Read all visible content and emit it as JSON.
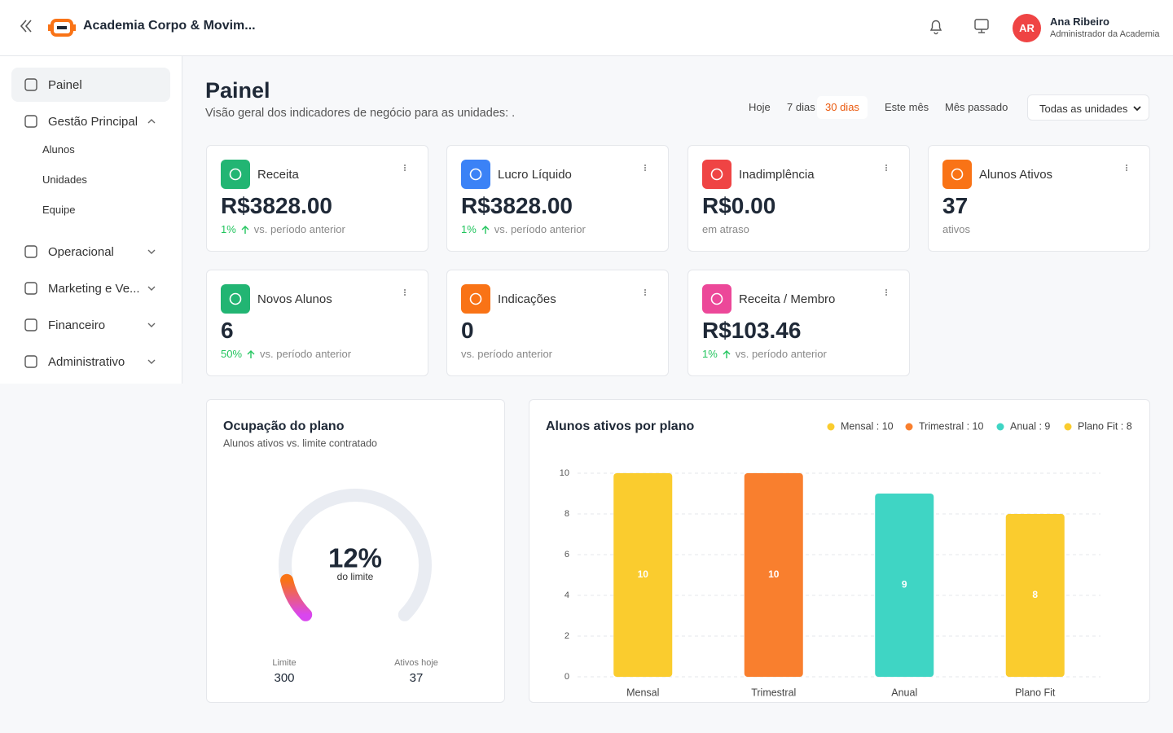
{
  "header": {
    "brand": "Academia Corpo & Movim...",
    "avatar": "AR",
    "user_name": "Ana Ribeiro",
    "user_role": "Administrador da Academia"
  },
  "sidebar": {
    "items": [
      {
        "label": "Painel",
        "active": true
      },
      {
        "label": "Gestão Principal",
        "expanded": true,
        "children": [
          "Alunos",
          "Unidades",
          "Equipe"
        ]
      },
      {
        "label": "Operacional"
      },
      {
        "label": "Marketing e Ve..."
      },
      {
        "label": "Financeiro"
      },
      {
        "label": "Administrativo"
      }
    ]
  },
  "page": {
    "title": "Painel",
    "subtitle": "Visão geral dos indicadores de negócio para as unidades: .",
    "ranges": [
      "Hoje",
      "7 dias",
      "30 dias",
      "Este mês",
      "Mês passado"
    ],
    "active_range": 2,
    "unit_filter": "Todas as unidades"
  },
  "kpis": [
    {
      "label": "Receita",
      "value": "R$3828.00",
      "change": "1%",
      "note": "vs. período anterior",
      "color": "#22b573"
    },
    {
      "label": "Lucro Líquido",
      "value": "R$3828.00",
      "change": "1%",
      "note": "vs. período anterior",
      "color": "#3b82f6"
    },
    {
      "label": "Inadimplência",
      "value": "R$0.00",
      "note": "em atraso",
      "color": "#ef4444"
    },
    {
      "label": "Alunos Ativos",
      "value": "37",
      "note": "ativos",
      "color": "#f97316"
    },
    {
      "label": "Novos Alunos",
      "value": "6",
      "change": "50%",
      "note": "vs. período anterior",
      "color": "#22b573"
    },
    {
      "label": "Indicações",
      "value": "0",
      "note": "vs. período anterior",
      "color": "#f97316"
    },
    {
      "label": "Receita / Membro",
      "value": "R$103.46",
      "change": "1%",
      "note": "vs. período anterior",
      "color": "#ec4899"
    }
  ],
  "gauge": {
    "title": "Ocupação do plano",
    "subtitle": "Alunos ativos vs. limite contratado",
    "percent": 12,
    "percent_label": "12%",
    "caption": "do limite",
    "limit_label": "Limite",
    "limit": 300,
    "active_label": "Ativos hoje",
    "active": 37
  },
  "chart_data": {
    "type": "bar",
    "title": "Alunos ativos por plano",
    "categories": [
      "Mensal",
      "Trimestral",
      "Anual",
      "Plano Fit"
    ],
    "values": [
      10,
      10,
      9,
      8
    ],
    "colors": [
      "#facc2e",
      "#f97f2e",
      "#3fd5c4",
      "#facc2e"
    ],
    "legend_labels": [
      "Mensal : 10",
      "Trimestral : 10",
      "Anual : 9",
      "Plano Fit : 8"
    ],
    "ylim": [
      0,
      10
    ],
    "yticks": [
      0,
      2,
      4,
      6,
      8,
      10
    ],
    "grid": true
  }
}
